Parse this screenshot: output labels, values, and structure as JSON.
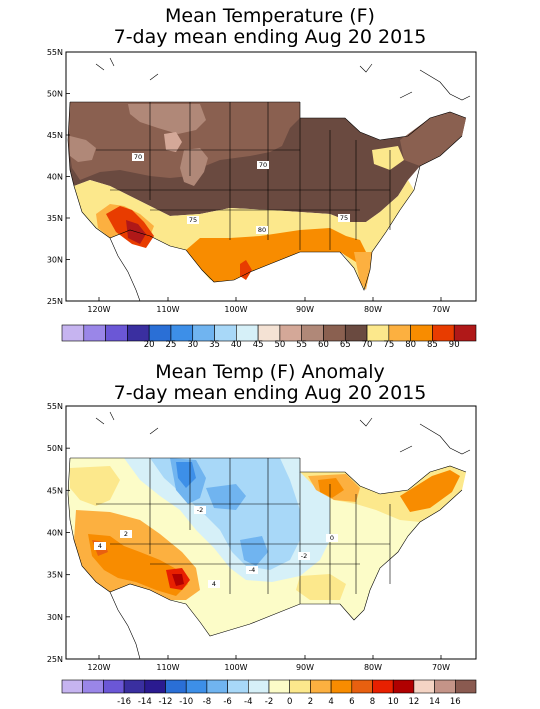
{
  "maps": [
    {
      "title_line1": "Mean Temperature (F)",
      "title_line2": "7-day mean ending Aug 20 2015",
      "lat_labels": [
        "55N",
        "50N",
        "45N",
        "40N",
        "35N",
        "30N",
        "25N"
      ],
      "lon_labels": [
        "120W",
        "110W",
        "100W",
        "90W",
        "80W",
        "70W"
      ],
      "contour_labels": [
        "70",
        "70",
        "75",
        "75",
        "80"
      ],
      "legend_colors": [
        "#c6b4f0",
        "#9a86e8",
        "#6b57d6",
        "#3a2fa0",
        "#2a6fd6",
        "#3d8fe8",
        "#70b4f0",
        "#a8d8f8",
        "#d6f0f8",
        "#f4e2d4",
        "#d4a898",
        "#b08878",
        "#8a6050",
        "#6a4a40",
        "#fce88c",
        "#fcb040",
        "#f88c00",
        "#e83c00",
        "#b01818"
      ],
      "legend_labels": [
        "20",
        "25",
        "30",
        "35",
        "40",
        "45",
        "50",
        "55",
        "60",
        "65",
        "70",
        "75",
        "80",
        "85",
        "90"
      ]
    },
    {
      "title_line1": "Mean Temp (F) Anomaly",
      "title_line2": "7-day mean ending Aug 20 2015",
      "lat_labels": [
        "55N",
        "50N",
        "45N",
        "40N",
        "35N",
        "30N",
        "25N"
      ],
      "lon_labels": [
        "120W",
        "110W",
        "100W",
        "90W",
        "80W",
        "70W"
      ],
      "contour_labels": [
        "-2",
        "-4",
        "-2",
        "2",
        "0",
        "4",
        "4"
      ],
      "legend_colors": [
        "#c6b4f0",
        "#9a86e8",
        "#6b57d6",
        "#3a2fa0",
        "#2a1a90",
        "#2a6fd6",
        "#3d8fe8",
        "#70b4f0",
        "#a8d8f8",
        "#d6f0f8",
        "#fcfcc8",
        "#fce88c",
        "#fcb040",
        "#f88c00",
        "#e86010",
        "#e82000",
        "#b00000",
        "#f4d4c4",
        "#c49488",
        "#8a5a50"
      ],
      "legend_labels": [
        "-16",
        "-14",
        "-12",
        "-10",
        "-8",
        "-6",
        "-4",
        "-2",
        "0",
        "2",
        "4",
        "6",
        "8",
        "10",
        "12",
        "14",
        "16"
      ]
    }
  ]
}
